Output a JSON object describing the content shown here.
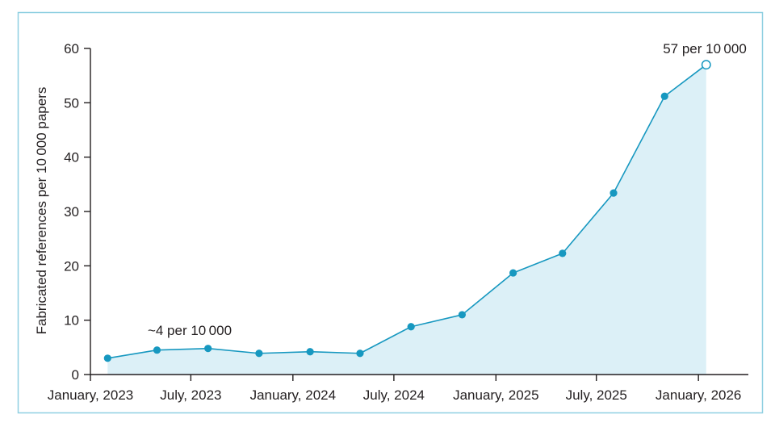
{
  "chart_data": {
    "type": "area",
    "ylabel": "Fabricated references per 10 000 papers",
    "ylim": [
      0,
      60
    ],
    "yticks": [
      0,
      10,
      20,
      30,
      40,
      50,
      60
    ],
    "xlim": [
      "2023-01-01",
      "2026-04-01"
    ],
    "xticks": [
      {
        "date": "2023-01-01",
        "label": "January, 2023"
      },
      {
        "date": "2023-07-01",
        "label": "July, 2023"
      },
      {
        "date": "2024-01-01",
        "label": "January, 2024"
      },
      {
        "date": "2024-07-01",
        "label": "July, 2024"
      },
      {
        "date": "2025-01-01",
        "label": "January, 2025"
      },
      {
        "date": "2025-07-01",
        "label": "July, 2025"
      },
      {
        "date": "2026-01-01",
        "label": "January, 2026"
      }
    ],
    "grid": false,
    "legend": "none",
    "series": [
      {
        "points": [
          {
            "x": "2023-02-01",
            "y": 3.0
          },
          {
            "x": "2023-05-01",
            "y": 4.5
          },
          {
            "x": "2023-08-01",
            "y": 4.8
          },
          {
            "x": "2023-11-01",
            "y": 3.9
          },
          {
            "x": "2024-02-01",
            "y": 4.2
          },
          {
            "x": "2024-05-01",
            "y": 3.9
          },
          {
            "x": "2024-08-01",
            "y": 8.8
          },
          {
            "x": "2024-11-01",
            "y": 11.0
          },
          {
            "x": "2025-02-01",
            "y": 18.7
          },
          {
            "x": "2025-05-01",
            "y": 22.3
          },
          {
            "x": "2025-08-01",
            "y": 33.4
          },
          {
            "x": "2025-11-01",
            "y": 51.2
          },
          {
            "x": "2026-01-15",
            "y": 57,
            "marker": "open"
          }
        ]
      }
    ],
    "annotations": [
      "~4 per 10 000",
      "57 per 10 000"
    ],
    "colors": {
      "line": "#1798c0",
      "area": "#dcf0f7",
      "frame": "#8fcfe1",
      "axis": "#231f20",
      "text": "#231f20"
    }
  }
}
